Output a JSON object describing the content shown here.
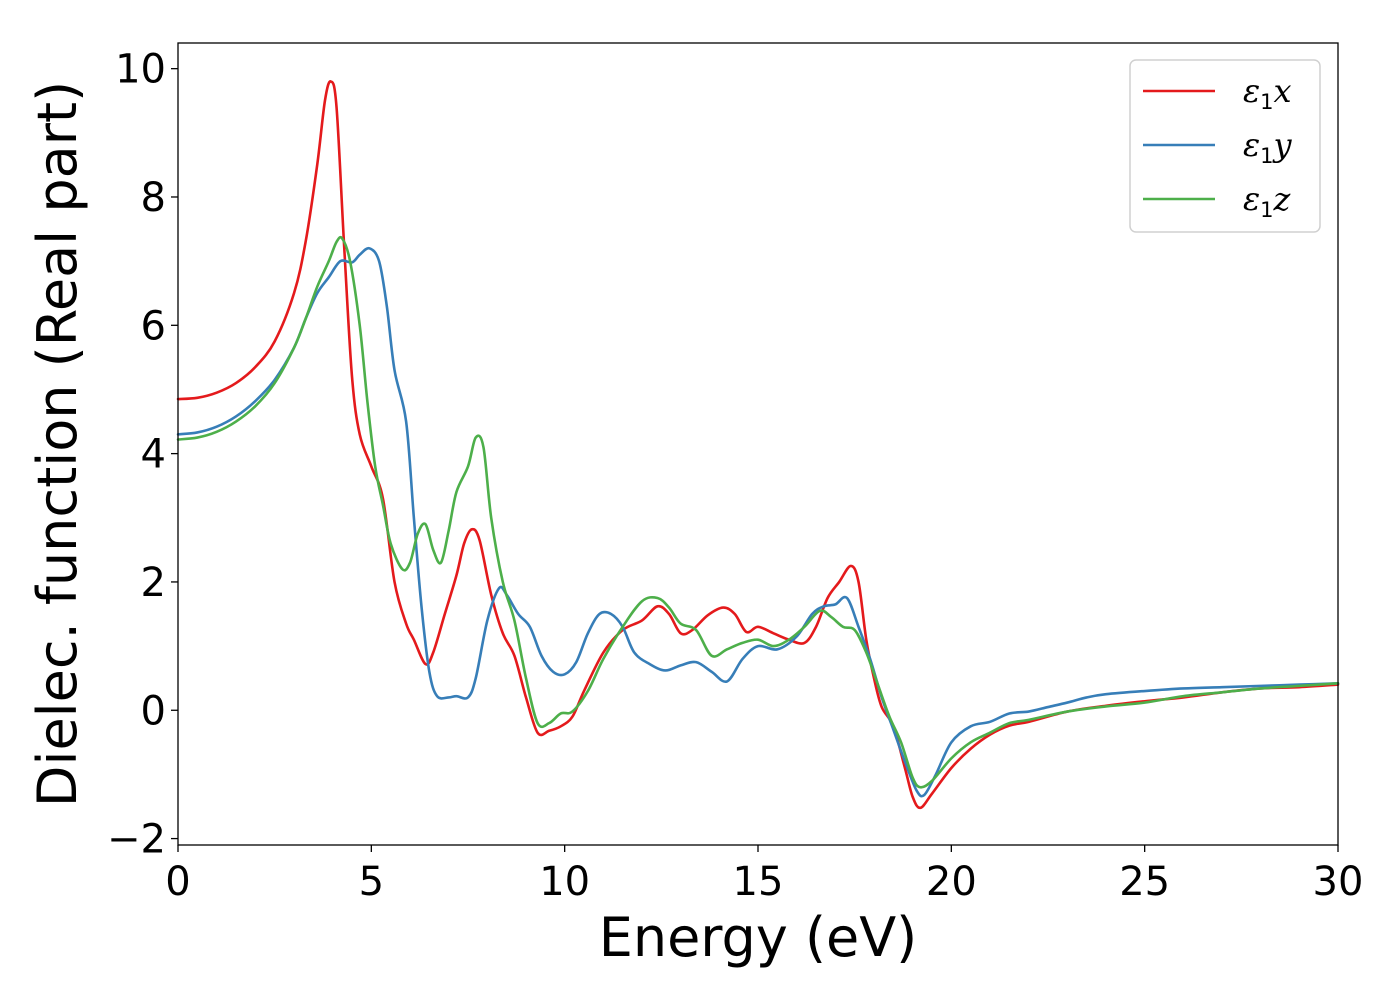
{
  "chart_data": {
    "type": "line",
    "title": "",
    "xlabel": "Energy (eV)",
    "ylabel": "Dielec. function (Real part)",
    "xlim": [
      0,
      30
    ],
    "ylim": [
      -2.1,
      10.4
    ],
    "x_ticks": [
      0,
      5,
      10,
      15,
      20,
      25,
      30
    ],
    "y_ticks": [
      -2,
      0,
      2,
      4,
      6,
      8,
      10
    ],
    "x_tick_labels": [
      "0",
      "5",
      "10",
      "15",
      "20",
      "25",
      "30"
    ],
    "y_tick_labels": [
      "−2",
      "0",
      "2",
      "4",
      "6",
      "8",
      "10"
    ],
    "grid": false,
    "legend_position": "top-right",
    "series": [
      {
        "name": "ε₁x",
        "symbol": "ε",
        "sub": "1",
        "suffix": "x",
        "color": "#e41a1c",
        "points": [
          [
            0,
            4.85
          ],
          [
            0.5,
            4.87
          ],
          [
            1.0,
            4.95
          ],
          [
            1.5,
            5.1
          ],
          [
            2.0,
            5.35
          ],
          [
            2.5,
            5.75
          ],
          [
            3.0,
            6.5
          ],
          [
            3.3,
            7.3
          ],
          [
            3.6,
            8.5
          ],
          [
            3.8,
            9.5
          ],
          [
            3.95,
            9.8
          ],
          [
            4.1,
            9.4
          ],
          [
            4.3,
            7.2
          ],
          [
            4.5,
            5.2
          ],
          [
            4.7,
            4.3
          ],
          [
            5.0,
            3.8
          ],
          [
            5.3,
            3.3
          ],
          [
            5.6,
            2.0
          ],
          [
            5.9,
            1.35
          ],
          [
            6.1,
            1.1
          ],
          [
            6.4,
            0.72
          ],
          [
            6.6,
            0.9
          ],
          [
            6.9,
            1.5
          ],
          [
            7.2,
            2.1
          ],
          [
            7.4,
            2.6
          ],
          [
            7.6,
            2.82
          ],
          [
            7.8,
            2.65
          ],
          [
            8.1,
            1.8
          ],
          [
            8.4,
            1.2
          ],
          [
            8.7,
            0.85
          ],
          [
            9.0,
            0.2
          ],
          [
            9.3,
            -0.35
          ],
          [
            9.6,
            -0.32
          ],
          [
            9.9,
            -0.25
          ],
          [
            10.2,
            -0.1
          ],
          [
            10.5,
            0.3
          ],
          [
            11.0,
            0.9
          ],
          [
            11.5,
            1.25
          ],
          [
            12.0,
            1.4
          ],
          [
            12.4,
            1.62
          ],
          [
            12.7,
            1.5
          ],
          [
            13.0,
            1.2
          ],
          [
            13.3,
            1.25
          ],
          [
            13.7,
            1.48
          ],
          [
            14.1,
            1.6
          ],
          [
            14.4,
            1.5
          ],
          [
            14.7,
            1.22
          ],
          [
            15.0,
            1.3
          ],
          [
            15.4,
            1.2
          ],
          [
            15.8,
            1.1
          ],
          [
            16.2,
            1.05
          ],
          [
            16.5,
            1.3
          ],
          [
            16.8,
            1.75
          ],
          [
            17.1,
            2.0
          ],
          [
            17.4,
            2.25
          ],
          [
            17.6,
            2.0
          ],
          [
            17.8,
            1.1
          ],
          [
            18.0,
            0.5
          ],
          [
            18.2,
            0.05
          ],
          [
            18.5,
            -0.25
          ],
          [
            18.8,
            -0.9
          ],
          [
            19.0,
            -1.35
          ],
          [
            19.2,
            -1.52
          ],
          [
            19.5,
            -1.3
          ],
          [
            20.0,
            -0.9
          ],
          [
            20.5,
            -0.6
          ],
          [
            21.0,
            -0.38
          ],
          [
            21.5,
            -0.24
          ],
          [
            22.0,
            -0.18
          ],
          [
            23.0,
            -0.02
          ],
          [
            24.0,
            0.07
          ],
          [
            25.0,
            0.14
          ],
          [
            26.0,
            0.2
          ],
          [
            27.0,
            0.28
          ],
          [
            28.0,
            0.34
          ],
          [
            29.0,
            0.36
          ],
          [
            30.0,
            0.4
          ]
        ]
      },
      {
        "name": "ε₁y",
        "symbol": "ε",
        "sub": "1",
        "suffix": "y",
        "color": "#377eb8",
        "points": [
          [
            0,
            4.3
          ],
          [
            0.5,
            4.33
          ],
          [
            1.0,
            4.42
          ],
          [
            1.5,
            4.58
          ],
          [
            2.0,
            4.82
          ],
          [
            2.5,
            5.15
          ],
          [
            3.0,
            5.65
          ],
          [
            3.3,
            6.1
          ],
          [
            3.6,
            6.5
          ],
          [
            3.9,
            6.75
          ],
          [
            4.2,
            7.0
          ],
          [
            4.5,
            6.98
          ],
          [
            4.7,
            7.1
          ],
          [
            4.95,
            7.2
          ],
          [
            5.2,
            7.0
          ],
          [
            5.4,
            6.3
          ],
          [
            5.6,
            5.3
          ],
          [
            5.9,
            4.5
          ],
          [
            6.1,
            3.0
          ],
          [
            6.3,
            1.6
          ],
          [
            6.5,
            0.6
          ],
          [
            6.7,
            0.22
          ],
          [
            7.0,
            0.2
          ],
          [
            7.2,
            0.22
          ],
          [
            7.5,
            0.2
          ],
          [
            7.7,
            0.5
          ],
          [
            8.0,
            1.4
          ],
          [
            8.3,
            1.9
          ],
          [
            8.5,
            1.8
          ],
          [
            8.8,
            1.5
          ],
          [
            9.1,
            1.3
          ],
          [
            9.4,
            0.85
          ],
          [
            9.7,
            0.6
          ],
          [
            10.0,
            0.56
          ],
          [
            10.3,
            0.75
          ],
          [
            10.6,
            1.2
          ],
          [
            10.9,
            1.5
          ],
          [
            11.2,
            1.5
          ],
          [
            11.5,
            1.3
          ],
          [
            11.8,
            0.9
          ],
          [
            12.2,
            0.72
          ],
          [
            12.6,
            0.62
          ],
          [
            13.0,
            0.7
          ],
          [
            13.4,
            0.75
          ],
          [
            13.8,
            0.6
          ],
          [
            14.2,
            0.45
          ],
          [
            14.6,
            0.8
          ],
          [
            15.0,
            1.0
          ],
          [
            15.5,
            0.95
          ],
          [
            16.0,
            1.15
          ],
          [
            16.4,
            1.5
          ],
          [
            16.7,
            1.62
          ],
          [
            17.0,
            1.65
          ],
          [
            17.3,
            1.75
          ],
          [
            17.6,
            1.3
          ],
          [
            17.9,
            0.8
          ],
          [
            18.2,
            0.2
          ],
          [
            18.5,
            -0.3
          ],
          [
            18.8,
            -0.8
          ],
          [
            19.1,
            -1.25
          ],
          [
            19.3,
            -1.32
          ],
          [
            19.6,
            -1.0
          ],
          [
            20.0,
            -0.5
          ],
          [
            20.5,
            -0.25
          ],
          [
            21.0,
            -0.18
          ],
          [
            21.5,
            -0.05
          ],
          [
            22.0,
            -0.02
          ],
          [
            22.5,
            0.05
          ],
          [
            23.0,
            0.12
          ],
          [
            23.5,
            0.2
          ],
          [
            24.0,
            0.25
          ],
          [
            25.0,
            0.3
          ],
          [
            26.0,
            0.34
          ],
          [
            27.0,
            0.36
          ],
          [
            28.0,
            0.38
          ],
          [
            29.0,
            0.4
          ],
          [
            30.0,
            0.42
          ]
        ]
      },
      {
        "name": "ε₁z",
        "symbol": "ε",
        "sub": "1",
        "suffix": "z",
        "color": "#4daf4a",
        "points": [
          [
            0,
            4.22
          ],
          [
            0.5,
            4.25
          ],
          [
            1.0,
            4.34
          ],
          [
            1.5,
            4.5
          ],
          [
            2.0,
            4.74
          ],
          [
            2.5,
            5.1
          ],
          [
            3.0,
            5.65
          ],
          [
            3.3,
            6.1
          ],
          [
            3.6,
            6.6
          ],
          [
            3.9,
            7.0
          ],
          [
            4.1,
            7.3
          ],
          [
            4.25,
            7.35
          ],
          [
            4.45,
            7.0
          ],
          [
            4.7,
            6.0
          ],
          [
            4.9,
            4.8
          ],
          [
            5.1,
            3.8
          ],
          [
            5.3,
            3.2
          ],
          [
            5.5,
            2.6
          ],
          [
            5.8,
            2.2
          ],
          [
            6.0,
            2.3
          ],
          [
            6.2,
            2.75
          ],
          [
            6.4,
            2.9
          ],
          [
            6.6,
            2.5
          ],
          [
            6.8,
            2.3
          ],
          [
            7.0,
            2.8
          ],
          [
            7.2,
            3.4
          ],
          [
            7.5,
            3.8
          ],
          [
            7.7,
            4.25
          ],
          [
            7.9,
            4.1
          ],
          [
            8.1,
            3.0
          ],
          [
            8.4,
            2.0
          ],
          [
            8.7,
            1.4
          ],
          [
            9.0,
            0.5
          ],
          [
            9.3,
            -0.2
          ],
          [
            9.6,
            -0.2
          ],
          [
            9.9,
            -0.05
          ],
          [
            10.2,
            -0.02
          ],
          [
            10.6,
            0.3
          ],
          [
            11.0,
            0.8
          ],
          [
            11.5,
            1.3
          ],
          [
            12.0,
            1.7
          ],
          [
            12.4,
            1.75
          ],
          [
            12.7,
            1.6
          ],
          [
            13.0,
            1.35
          ],
          [
            13.4,
            1.25
          ],
          [
            13.8,
            0.85
          ],
          [
            14.2,
            0.95
          ],
          [
            14.6,
            1.05
          ],
          [
            15.0,
            1.1
          ],
          [
            15.4,
            1.0
          ],
          [
            15.8,
            1.1
          ],
          [
            16.2,
            1.3
          ],
          [
            16.6,
            1.55
          ],
          [
            16.9,
            1.45
          ],
          [
            17.2,
            1.3
          ],
          [
            17.5,
            1.25
          ],
          [
            17.8,
            0.9
          ],
          [
            18.1,
            0.4
          ],
          [
            18.4,
            -0.1
          ],
          [
            18.7,
            -0.5
          ],
          [
            19.0,
            -1.05
          ],
          [
            19.2,
            -1.2
          ],
          [
            19.5,
            -1.1
          ],
          [
            20.0,
            -0.75
          ],
          [
            20.5,
            -0.5
          ],
          [
            21.0,
            -0.35
          ],
          [
            21.5,
            -0.2
          ],
          [
            22.0,
            -0.15
          ],
          [
            23.0,
            -0.02
          ],
          [
            24.0,
            0.06
          ],
          [
            25.0,
            0.12
          ],
          [
            26.0,
            0.22
          ],
          [
            27.0,
            0.28
          ],
          [
            28.0,
            0.34
          ],
          [
            29.0,
            0.38
          ],
          [
            30.0,
            0.42
          ]
        ]
      }
    ]
  }
}
